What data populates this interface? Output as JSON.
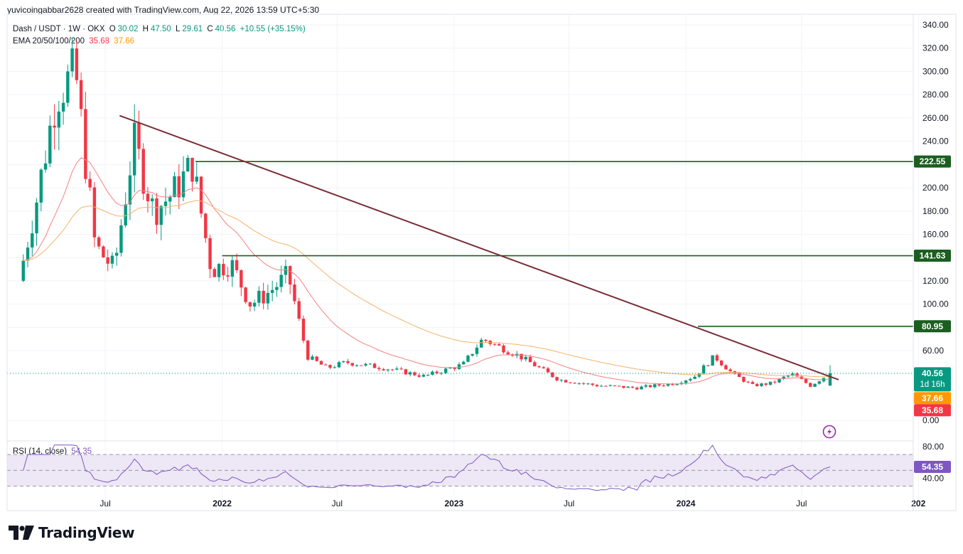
{
  "header": {
    "credit": "yuvicoingabbar2628 created with TradingView.com, Aug 22, 2026 13:59 UTC+5:30"
  },
  "legend": {
    "symbol": "Dash / USDT · 1W · OKX",
    "open_label": "O",
    "open": "30.02",
    "high_label": "H",
    "high": "47.50",
    "low_label": "L",
    "low": "29.61",
    "close_label": "C",
    "close": "40.56",
    "change": "+10.55 (+35.15%)",
    "ema_title": "EMA 20/50/100/200",
    "ema_20": "35.68",
    "ema_50": "37.66"
  },
  "rsi_legend": {
    "title": "RSI (14, close)",
    "value": "54.35"
  },
  "price_scale": {
    "ticks": [
      "340.00",
      "320.00",
      "300.00",
      "280.00",
      "260.00",
      "240.00",
      "220.00",
      "200.00",
      "180.00",
      "160.00",
      "140.00",
      "120.00",
      "100.00",
      "80.00",
      "60.00",
      "40.00",
      "0.00"
    ],
    "tick_values": [
      340,
      320,
      300,
      280,
      260,
      240,
      220,
      200,
      180,
      160,
      140,
      120,
      100,
      80,
      60,
      40,
      0
    ]
  },
  "rsi_scale": {
    "ticks": [
      "80.00",
      "40.00"
    ],
    "tick_values": [
      80,
      40
    ]
  },
  "time_axis": {
    "labels": [
      "Jul",
      "2022",
      "Jul",
      "2023",
      "Jul",
      "2024",
      "Jul",
      "202"
    ]
  },
  "badges": {
    "last_price": "40.56",
    "countdown": "1d 16h",
    "ema_50": "37.66",
    "ema_20": "35.68",
    "level_1": "222.55",
    "level_2": "141.63",
    "level_3": "80.95",
    "rsi": "54.35"
  },
  "colors": {
    "up": "#089981",
    "down": "#f23645",
    "ema20": "#f5807f",
    "ema50": "#f6b26b",
    "trendline": "#7b2d36",
    "levels": "#1b5e20",
    "rsi_line": "#7e57c2",
    "rsi_band": "#ede7f6",
    "last_price_badge": "#089981",
    "ema50_badge": "#ff9800",
    "ema20_badge": "#f23645",
    "level_badge": "#1b5e20",
    "rsi_badge": "#7e57c2"
  },
  "brand": {
    "logo_text": "TradingView",
    "logo_icon": "tradingview-logo-icon",
    "alert_icon": "lightning-icon"
  },
  "chart_data": {
    "type": "candlestick",
    "timeframe": "1W",
    "levels": [
      222.55,
      141.63,
      80.95
    ],
    "last": {
      "open": 30.02,
      "high": 47.5,
      "low": 29.61,
      "close": 40.56
    },
    "ema": {
      "ema20": 35.68,
      "ema50": 37.66
    },
    "rsi": {
      "period": 14,
      "value": 54.35,
      "band": [
        30,
        70
      ]
    },
    "trendline": {
      "from": {
        "date": "2021-08",
        "price": 262
      },
      "to": {
        "date": "2024-08",
        "price": 35
      }
    },
    "anchors": [
      {
        "date": "2021-02",
        "close": 120
      },
      {
        "date": "2021-03",
        "close": 190
      },
      {
        "date": "2021-04",
        "close": 280
      },
      {
        "date": "2021-05",
        "close": 300
      },
      {
        "date": "2021-06",
        "close": 150
      },
      {
        "date": "2021-07",
        "close": 130
      },
      {
        "date": "2021-08",
        "close": 240
      },
      {
        "date": "2021-09",
        "close": 180
      },
      {
        "date": "2021-10",
        "close": 195
      },
      {
        "date": "2021-11",
        "close": 220
      },
      {
        "date": "2021-12",
        "close": 130
      },
      {
        "date": "2022-01",
        "close": 135
      },
      {
        "date": "2022-02",
        "close": 100
      },
      {
        "date": "2022-03",
        "close": 110
      },
      {
        "date": "2022-04",
        "close": 125
      },
      {
        "date": "2022-05",
        "close": 55
      },
      {
        "date": "2022-06",
        "close": 45
      },
      {
        "date": "2022-07",
        "close": 50
      },
      {
        "date": "2022-09",
        "close": 45
      },
      {
        "date": "2022-11",
        "close": 38
      },
      {
        "date": "2023-01",
        "close": 48
      },
      {
        "date": "2023-02",
        "close": 70
      },
      {
        "date": "2023-04",
        "close": 55
      },
      {
        "date": "2023-06",
        "close": 35
      },
      {
        "date": "2023-08",
        "close": 30
      },
      {
        "date": "2023-10",
        "close": 28
      },
      {
        "date": "2023-12",
        "close": 32
      },
      {
        "date": "2024-01",
        "close": 38
      },
      {
        "date": "2024-02",
        "close": 55
      },
      {
        "date": "2024-03",
        "close": 40
      },
      {
        "date": "2024-04",
        "close": 30
      },
      {
        "date": "2024-05",
        "close": 32
      },
      {
        "date": "2024-06",
        "close": 40
      },
      {
        "date": "2024-07",
        "close": 30
      },
      {
        "date": "2024-08",
        "close": 40.56
      }
    ]
  }
}
